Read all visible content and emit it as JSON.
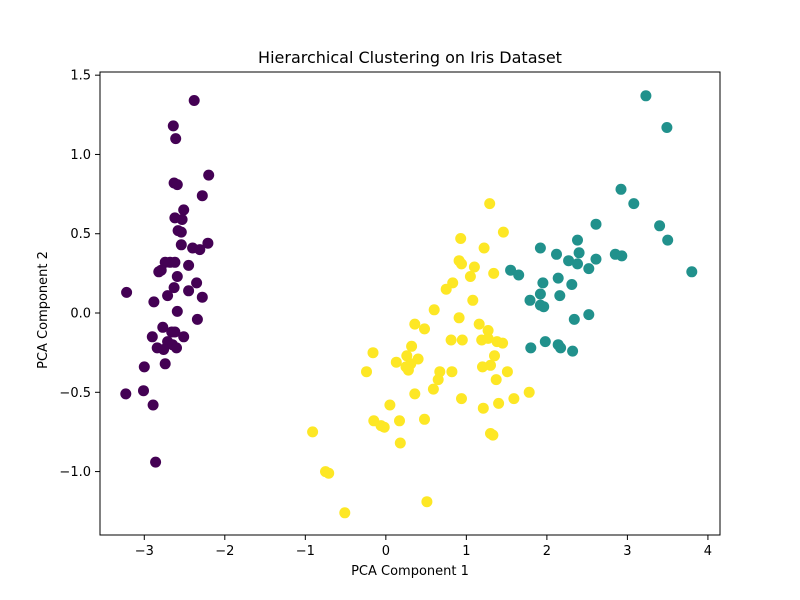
{
  "chart_data": {
    "type": "scatter",
    "title": "Hierarchical Clustering on Iris Dataset",
    "xlabel": "PCA Component 1",
    "ylabel": "PCA Component 2",
    "xlim": [
      -3.55,
      4.15
    ],
    "ylim": [
      -1.4,
      1.52
    ],
    "xticks": [
      -3,
      -2,
      -1,
      0,
      1,
      2,
      3,
      4
    ],
    "xtick_labels": [
      "−3",
      "−2",
      "−1",
      "0",
      "1",
      "2",
      "3",
      "4"
    ],
    "yticks": [
      -1.0,
      -0.5,
      0.0,
      0.5,
      1.0,
      1.5
    ],
    "ytick_labels": [
      "−1.0",
      "−0.5",
      "0.0",
      "0.5",
      "1.0",
      "1.5"
    ],
    "grid": false,
    "legend": "none",
    "series": [
      {
        "color": "#440154",
        "points": [
          [
            -2.38,
            1.34
          ],
          [
            -2.64,
            1.18
          ],
          [
            -2.61,
            1.1
          ],
          [
            -2.63,
            0.82
          ],
          [
            -2.59,
            0.81
          ],
          [
            -2.2,
            0.87
          ],
          [
            -2.28,
            0.74
          ],
          [
            -2.51,
            0.65
          ],
          [
            -2.62,
            0.6
          ],
          [
            -2.53,
            0.59
          ],
          [
            -2.58,
            0.52
          ],
          [
            -2.54,
            0.51
          ],
          [
            -2.54,
            0.43
          ],
          [
            -2.4,
            0.41
          ],
          [
            -2.31,
            0.4
          ],
          [
            -2.21,
            0.44
          ],
          [
            -2.68,
            0.32
          ],
          [
            -2.62,
            0.32
          ],
          [
            -2.74,
            0.32
          ],
          [
            -2.45,
            0.3
          ],
          [
            -2.79,
            0.27
          ],
          [
            -2.82,
            0.26
          ],
          [
            -2.59,
            0.23
          ],
          [
            -2.35,
            0.19
          ],
          [
            -2.63,
            0.16
          ],
          [
            -2.45,
            0.14
          ],
          [
            -2.71,
            0.11
          ],
          [
            -2.28,
            0.1
          ],
          [
            -3.22,
            0.13
          ],
          [
            -2.88,
            0.07
          ],
          [
            -2.59,
            0.01
          ],
          [
            -2.77,
            -0.09
          ],
          [
            -2.66,
            -0.12
          ],
          [
            -2.62,
            -0.12
          ],
          [
            -2.9,
            -0.15
          ],
          [
            -2.51,
            -0.15
          ],
          [
            -2.34,
            -0.04
          ],
          [
            -2.71,
            -0.18
          ],
          [
            -2.65,
            -0.2
          ],
          [
            -2.6,
            -0.22
          ],
          [
            -2.84,
            -0.22
          ],
          [
            -2.76,
            -0.23
          ],
          [
            -2.74,
            -0.32
          ],
          [
            -3.0,
            -0.34
          ],
          [
            -3.01,
            -0.49
          ],
          [
            -3.23,
            -0.51
          ],
          [
            -2.89,
            -0.58
          ],
          [
            -2.86,
            -0.94
          ]
        ]
      },
      {
        "color": "#21918c",
        "points": [
          [
            3.23,
            1.37
          ],
          [
            3.49,
            1.17
          ],
          [
            2.92,
            0.78
          ],
          [
            3.08,
            0.69
          ],
          [
            2.61,
            0.56
          ],
          [
            3.4,
            0.55
          ],
          [
            3.5,
            0.46
          ],
          [
            2.38,
            0.46
          ],
          [
            3.8,
            0.26
          ],
          [
            2.85,
            0.37
          ],
          [
            2.93,
            0.36
          ],
          [
            2.61,
            0.34
          ],
          [
            2.4,
            0.38
          ],
          [
            2.12,
            0.37
          ],
          [
            1.92,
            0.41
          ],
          [
            2.27,
            0.33
          ],
          [
            2.38,
            0.31
          ],
          [
            2.52,
            0.28
          ],
          [
            1.55,
            0.27
          ],
          [
            1.65,
            0.24
          ],
          [
            2.14,
            0.22
          ],
          [
            2.31,
            0.18
          ],
          [
            1.95,
            0.19
          ],
          [
            1.92,
            0.12
          ],
          [
            2.16,
            0.11
          ],
          [
            1.79,
            0.08
          ],
          [
            1.92,
            0.05
          ],
          [
            1.96,
            0.04
          ],
          [
            2.52,
            -0.01
          ],
          [
            2.34,
            -0.04
          ],
          [
            1.8,
            -0.22
          ],
          [
            1.98,
            -0.18
          ],
          [
            2.14,
            -0.2
          ],
          [
            2.17,
            -0.22
          ],
          [
            2.32,
            -0.24
          ]
        ]
      },
      {
        "color": "#fde725",
        "points": [
          [
            1.29,
            0.69
          ],
          [
            1.46,
            0.51
          ],
          [
            0.93,
            0.47
          ],
          [
            1.22,
            0.41
          ],
          [
            0.91,
            0.33
          ],
          [
            0.94,
            0.31
          ],
          [
            1.1,
            0.29
          ],
          [
            1.34,
            0.25
          ],
          [
            1.05,
            0.23
          ],
          [
            0.83,
            0.19
          ],
          [
            0.75,
            0.15
          ],
          [
            1.08,
            0.08
          ],
          [
            0.6,
            0.02
          ],
          [
            0.91,
            -0.03
          ],
          [
            0.36,
            -0.07
          ],
          [
            0.48,
            -0.1
          ],
          [
            1.16,
            -0.07
          ],
          [
            1.27,
            -0.11
          ],
          [
            0.81,
            -0.17
          ],
          [
            0.95,
            -0.17
          ],
          [
            1.19,
            -0.17
          ],
          [
            1.27,
            -0.16
          ],
          [
            1.38,
            -0.18
          ],
          [
            1.45,
            -0.19
          ],
          [
            0.32,
            -0.21
          ],
          [
            -0.16,
            -0.25
          ],
          [
            0.26,
            -0.27
          ],
          [
            1.35,
            -0.27
          ],
          [
            0.4,
            -0.29
          ],
          [
            0.13,
            -0.31
          ],
          [
            0.31,
            -0.32
          ],
          [
            0.25,
            -0.34
          ],
          [
            1.2,
            -0.34
          ],
          [
            1.3,
            -0.33
          ],
          [
            -0.24,
            -0.37
          ],
          [
            0.28,
            -0.36
          ],
          [
            0.82,
            -0.37
          ],
          [
            1.51,
            -0.37
          ],
          [
            0.67,
            -0.37
          ],
          [
            0.65,
            -0.42
          ],
          [
            1.37,
            -0.42
          ],
          [
            0.59,
            -0.48
          ],
          [
            0.36,
            -0.51
          ],
          [
            1.78,
            -0.5
          ],
          [
            0.94,
            -0.54
          ],
          [
            1.59,
            -0.54
          ],
          [
            1.4,
            -0.57
          ],
          [
            0.05,
            -0.58
          ],
          [
            1.21,
            -0.6
          ],
          [
            -0.15,
            -0.68
          ],
          [
            0.17,
            -0.68
          ],
          [
            0.48,
            -0.67
          ],
          [
            -0.06,
            -0.71
          ],
          [
            -0.02,
            -0.72
          ],
          [
            -0.91,
            -0.75
          ],
          [
            1.3,
            -0.76
          ],
          [
            1.33,
            -0.77
          ],
          [
            0.18,
            -0.82
          ],
          [
            -0.75,
            -1.0
          ],
          [
            -0.71,
            -1.01
          ],
          [
            0.51,
            -1.19
          ],
          [
            -0.51,
            -1.26
          ]
        ]
      }
    ]
  }
}
